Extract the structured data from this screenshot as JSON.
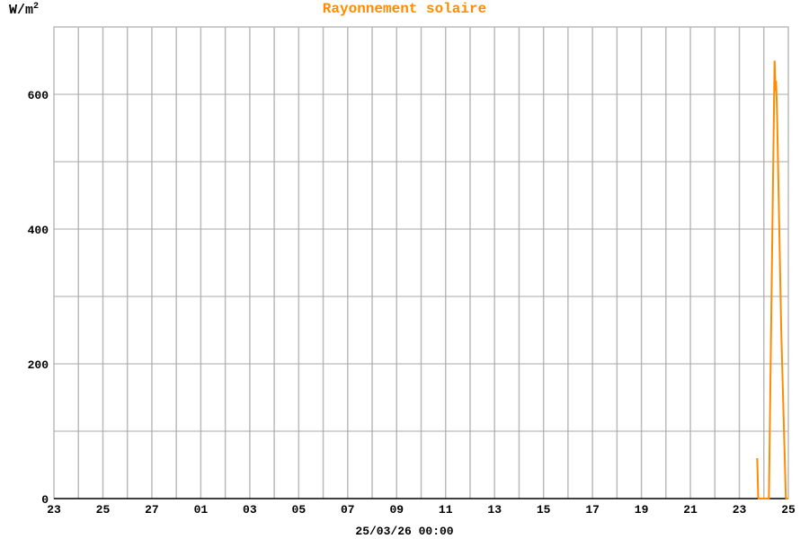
{
  "chart_data": {
    "type": "line",
    "title": "Rayonnement solaire",
    "ylabel": "W/m",
    "ylabel_superscript": "2",
    "footer": "25/03/26 00:00",
    "x_start": "2026-02-23T00:00",
    "x_end": "2026-03-25T00:00",
    "xticks": [
      "23",
      "25",
      "27",
      "01",
      "03",
      "05",
      "07",
      "09",
      "11",
      "13",
      "15",
      "17",
      "19",
      "21",
      "23",
      "25"
    ],
    "ylim": [
      0,
      700
    ],
    "yticks": [
      0,
      200,
      400,
      600
    ],
    "grid": true,
    "line_color": "#ff8c00",
    "series": [
      {
        "points": [
          [
            "2026-03-23T17:30",
            60
          ],
          [
            "2026-03-23T18:30",
            2
          ],
          [
            "2026-03-23T19:00",
            0
          ],
          [
            "2026-03-24T05:00",
            0
          ],
          [
            "2026-03-24T10:30",
            650
          ],
          [
            "2026-03-24T11:30",
            605
          ],
          [
            "2026-03-24T12:00",
            620
          ],
          [
            "2026-03-24T13:00",
            570
          ],
          [
            "2026-03-24T17:00",
            250
          ],
          [
            "2026-03-24T21:30",
            2
          ],
          [
            "2026-03-24T22:00",
            0
          ],
          [
            "2026-03-25T00:00",
            0
          ]
        ]
      }
    ]
  }
}
